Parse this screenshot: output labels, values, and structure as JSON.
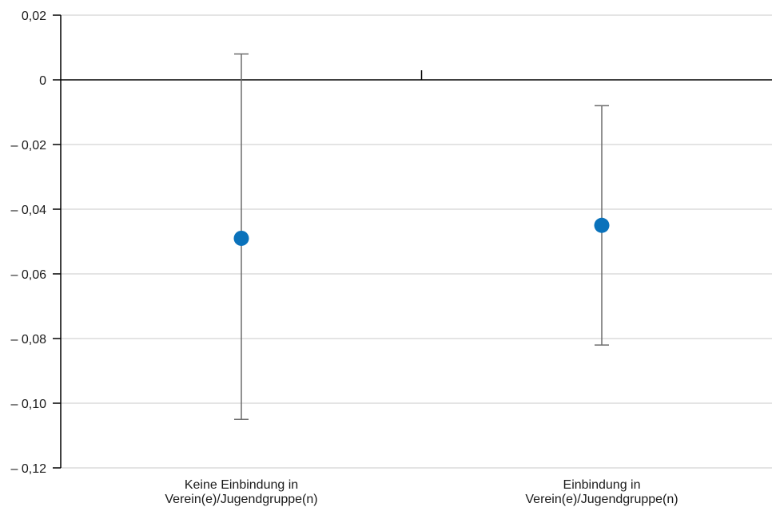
{
  "chart_data": {
    "type": "scatter",
    "title": "",
    "xlabel": "",
    "ylabel": "",
    "ylim": [
      -0.12,
      0.02
    ],
    "y_ticks": [
      0.02,
      0,
      -0.02,
      -0.04,
      -0.06,
      -0.08,
      -0.1,
      -0.12
    ],
    "y_tick_labels": [
      "0,02",
      "0",
      "– 0,02",
      "– 0,04",
      "– 0,06",
      "– 0,08",
      "– 0,10",
      "– 0,12"
    ],
    "grid": true,
    "categories": [
      [
        "Keine Einbindung in",
        "Verein(e)/Jugendgruppe(n)"
      ],
      [
        "Einbindung in",
        "Verein(e)/Jugendgruppe(n)"
      ]
    ],
    "series": [
      {
        "values": [
          -0.049,
          -0.045
        ],
        "error_low": [
          -0.105,
          -0.082
        ],
        "error_high": [
          0.008,
          -0.008
        ]
      }
    ],
    "colors": {
      "marker": "#0a72bb",
      "error_bar": "#6d6d6d",
      "grid": "#c8c8c8",
      "axis": "#000000"
    }
  }
}
